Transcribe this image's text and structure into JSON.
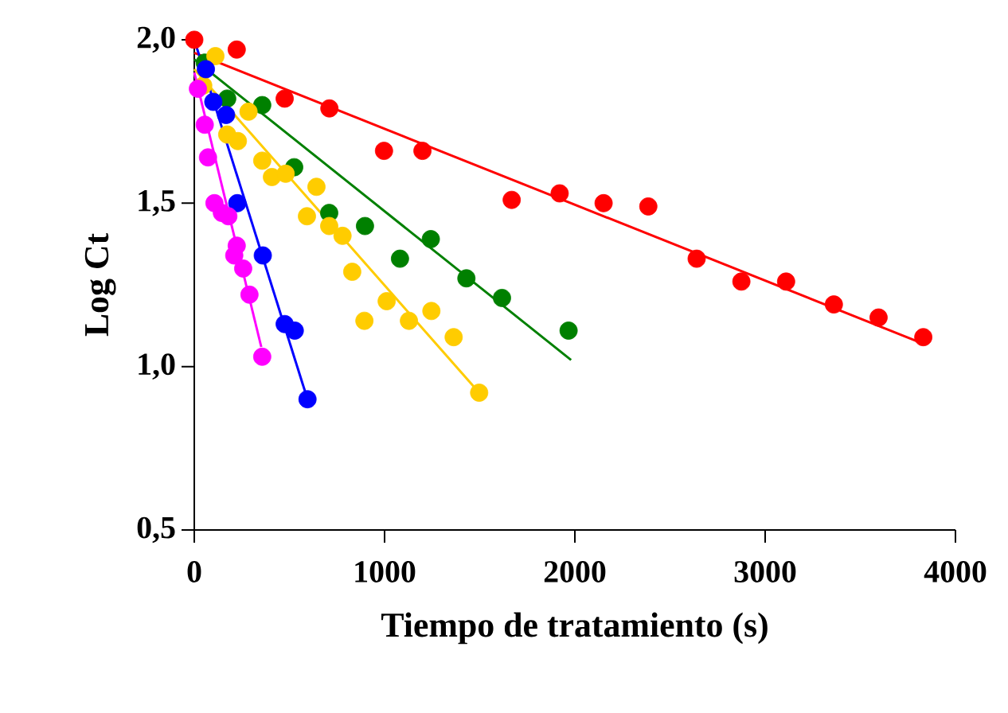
{
  "chart_data": {
    "type": "scatter",
    "xlabel": "Tiempo de tratamiento (s)",
    "ylabel": "Log Ct",
    "xlim": [
      0,
      4000
    ],
    "ylim": [
      0.5,
      2.0
    ],
    "xticks": [
      0,
      1000,
      2000,
      3000,
      4000
    ],
    "yticks": [
      {
        "value": 0.5,
        "label": "0,5"
      },
      {
        "value": 1.0,
        "label": "1,0"
      },
      {
        "value": 1.5,
        "label": "1,5"
      },
      {
        "value": 2.0,
        "label": "2,0"
      }
    ],
    "grid": false,
    "series": [
      {
        "type": "line",
        "color": "#ff0000",
        "marker": "none",
        "x": [
          0,
          3830
        ],
        "values": [
          1.96,
          1.07
        ]
      },
      {
        "type": "line",
        "color": "#008000",
        "marker": "none",
        "x": [
          0,
          1980
        ],
        "values": [
          1.94,
          1.02
        ]
      },
      {
        "type": "line",
        "color": "#ffcc00",
        "marker": "none",
        "x": [
          0,
          1497
        ],
        "values": [
          1.91,
          0.92
        ]
      },
      {
        "type": "line",
        "color": "#0000ff",
        "marker": "none",
        "x": [
          0,
          595
        ],
        "values": [
          2.0,
          0.9
        ]
      },
      {
        "type": "line",
        "color": "#ff00ff",
        "marker": "none",
        "x": [
          0,
          352
        ],
        "values": [
          1.9,
          1.06
        ]
      },
      {
        "type": "scatter",
        "color": "#ff0000",
        "marker": "circle",
        "x": [
          0,
          223,
          475,
          710,
          997,
          1199,
          1668,
          1920,
          2151,
          2386,
          2640,
          2875,
          3110,
          3361,
          3596,
          3831
        ],
        "values": [
          2.0,
          1.97,
          1.82,
          1.79,
          1.66,
          1.66,
          1.51,
          1.53,
          1.5,
          1.49,
          1.33,
          1.26,
          1.26,
          1.19,
          1.15,
          1.09
        ]
      },
      {
        "type": "scatter",
        "color": "#008000",
        "marker": "circle",
        "x": [
          55,
          173,
          357,
          525,
          709,
          897,
          1081,
          1243,
          1430,
          1617,
          1967
        ],
        "values": [
          1.93,
          1.82,
          1.8,
          1.61,
          1.47,
          1.43,
          1.33,
          1.39,
          1.27,
          1.21,
          1.11
        ]
      },
      {
        "type": "scatter",
        "color": "#ffcc00",
        "marker": "circle",
        "x": [
          47,
          111,
          173,
          229,
          285,
          357,
          408,
          480,
          592,
          642,
          709,
          779,
          830,
          894,
          1011,
          1128,
          1246,
          1363,
          1497
        ],
        "values": [
          1.86,
          1.95,
          1.71,
          1.69,
          1.78,
          1.63,
          1.58,
          1.59,
          1.46,
          1.55,
          1.43,
          1.4,
          1.29,
          1.14,
          1.2,
          1.14,
          1.17,
          1.09,
          0.92
        ]
      },
      {
        "type": "scatter",
        "color": "#0000ff",
        "marker": "circle",
        "x": [
          61,
          100,
          167,
          226,
          360,
          475,
          528,
          595
        ],
        "values": [
          1.91,
          1.81,
          1.77,
          1.5,
          1.34,
          1.13,
          1.11,
          0.9
        ]
      },
      {
        "type": "scatter",
        "color": "#ff00ff",
        "marker": "circle",
        "x": [
          19,
          55,
          72,
          106,
          145,
          179,
          210,
          223,
          257,
          290,
          357
        ],
        "values": [
          1.85,
          1.74,
          1.64,
          1.5,
          1.47,
          1.46,
          1.34,
          1.37,
          1.3,
          1.22,
          1.03
        ]
      }
    ]
  }
}
